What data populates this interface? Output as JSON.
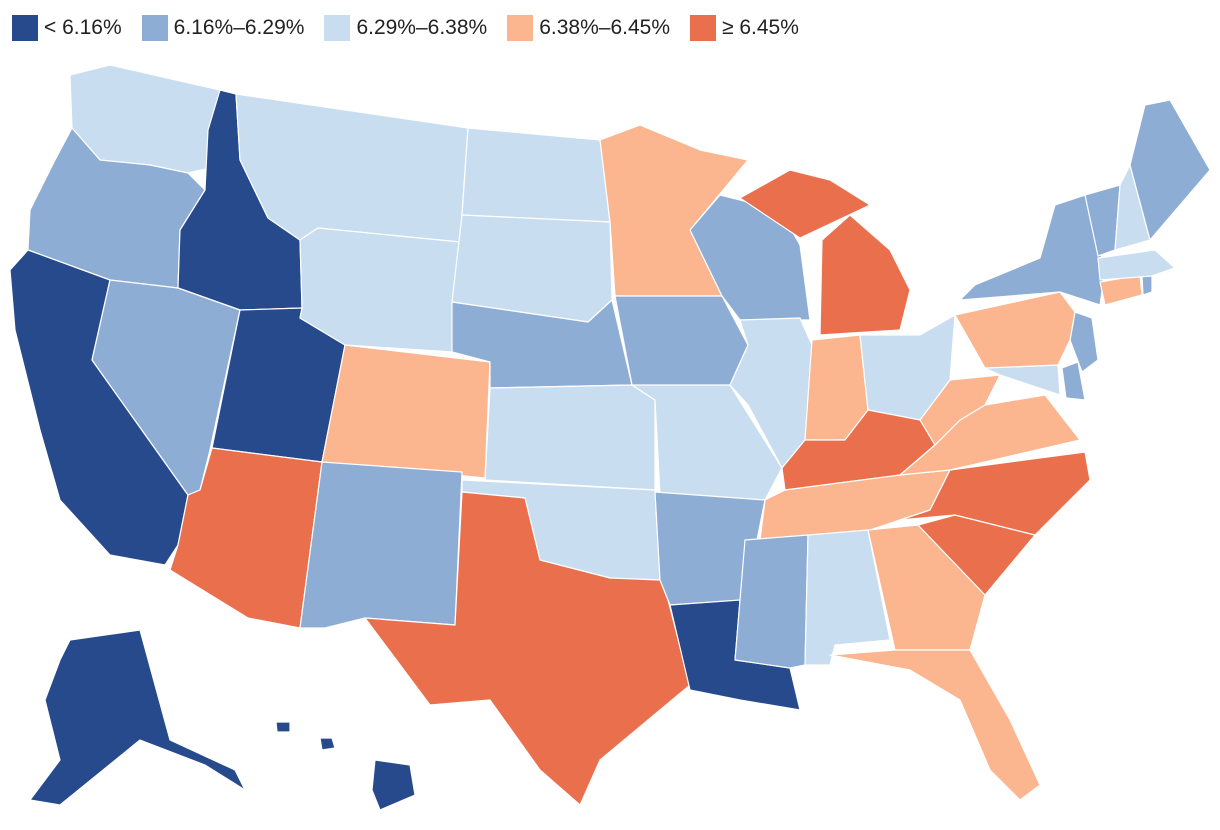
{
  "legend": [
    {
      "label": "< 6.16%",
      "color": "#264a8c"
    },
    {
      "label": "6.16%–6.29%",
      "color": "#8eadd4"
    },
    {
      "label": "6.29%–6.38%",
      "color": "#c8ddef"
    },
    {
      "label": "6.38%–6.45%",
      "color": "#fbb58f"
    },
    {
      "label": "≥ 6.45%",
      "color": "#ea6f4c"
    }
  ],
  "states": {
    "WA": 2,
    "OR": 1,
    "CA": 0,
    "ID": 0,
    "NV": 1,
    "UT": 0,
    "AZ": 4,
    "MT": 2,
    "WY": 2,
    "CO": 3,
    "NM": 1,
    "ND": 2,
    "SD": 2,
    "NE": 1,
    "KS": 2,
    "OK": 2,
    "TX": 4,
    "MN": 3,
    "IA": 1,
    "MO": 2,
    "AR": 1,
    "LA": 0,
    "WI": 1,
    "IL": 2,
    "MI": 4,
    "IN": 3,
    "OH": 2,
    "KY": 4,
    "TN": 3,
    "MS": 1,
    "AL": 2,
    "GA": 3,
    "FL": 3,
    "SC": 4,
    "NC": 4,
    "VA": 3,
    "WV": 3,
    "MD": 2,
    "DE": 1,
    "NJ": 1,
    "PA": 3,
    "NY": 1,
    "CT": 3,
    "RI": 1,
    "MA": 2,
    "VT": 1,
    "NH": 2,
    "ME": 1,
    "AK": 0,
    "HI": 0
  }
}
